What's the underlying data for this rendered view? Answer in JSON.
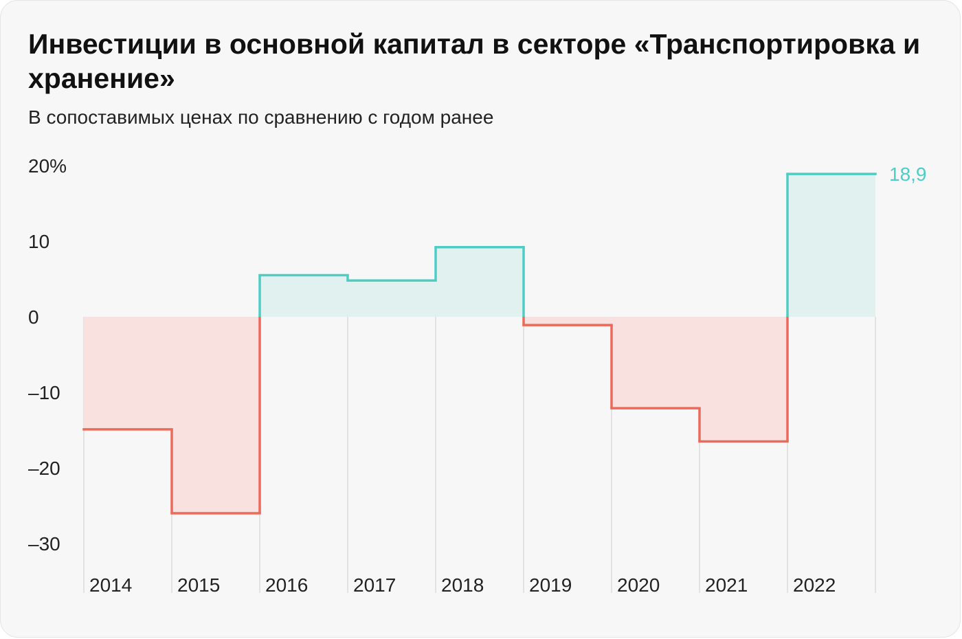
{
  "chart_data": {
    "type": "area",
    "title": "Инвестиции в основной капитал в секторе «Транспортировка и хранение»",
    "subtitle": "В сопоставимых ценах по сравнению с годом ранее",
    "categories": [
      "2014",
      "2015",
      "2016",
      "2017",
      "2018",
      "2019",
      "2020",
      "2021",
      "2022"
    ],
    "series": [
      {
        "values": [
          -14.9,
          -26.0,
          5.5,
          4.8,
          9.2,
          -1.1,
          -12.1,
          -16.5,
          18.9
        ]
      }
    ],
    "y_ticks": [
      {
        "value": 20,
        "label": "20%"
      },
      {
        "value": 10,
        "label": "10"
      },
      {
        "value": 0,
        "label": "0"
      },
      {
        "value": -10,
        "label": "–10"
      },
      {
        "value": -20,
        "label": "–20"
      },
      {
        "value": -30,
        "label": "–30"
      }
    ],
    "ylim": [
      -30,
      20
    ],
    "annotations": [
      {
        "category": "2022",
        "text": "18,9"
      }
    ],
    "step_chart": true,
    "grid": "vertical",
    "colors": {
      "positive_line": "#4ecdc4",
      "positive_fill": "#e0f1f0",
      "negative_line": "#ec6a5a",
      "negative_fill": "#f8e1df",
      "grid": "#dcdcdc",
      "text": "#222222"
    }
  }
}
